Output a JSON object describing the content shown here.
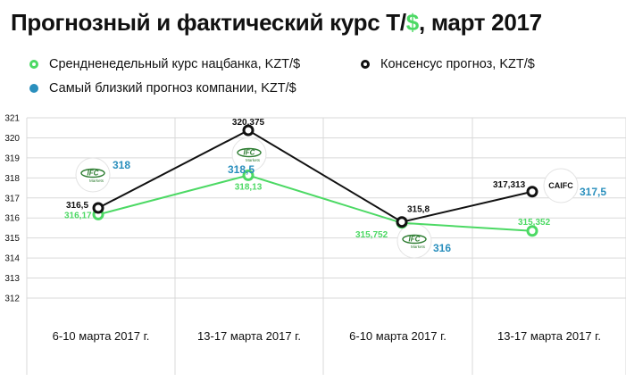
{
  "title": {
    "prefix": "Прогнозный и фактический курс Т/",
    "dollar": "$",
    "suffix": ", март 2017"
  },
  "legend": {
    "actual": "Срендненедельный курс нацбанка, KZT/$",
    "consensus": "Консенсус прогноз, KZT/$",
    "closest": "Самый близкий прогноз компании, KZT/$"
  },
  "colors": {
    "actual": "#4cd964",
    "consensus": "#111111",
    "closest": "#2a8fbd",
    "grid": "#d9d9d9"
  },
  "chart_data": {
    "type": "line",
    "categories": [
      "6-10 марта 2017 г.",
      "13-17 марта 2017 г.",
      "6-10 марта 2017 г.",
      "13-17 марта 2017 г."
    ],
    "ylim": [
      312,
      321
    ],
    "yticks": [
      "312",
      "313",
      "314",
      "315",
      "316",
      "317",
      "318",
      "319",
      "320",
      "321"
    ],
    "grid": true,
    "series": [
      {
        "key": "actual",
        "name": "Срендненедельный курс нацбанка, KZT/$",
        "values": [
          316.17,
          318.13,
          315.752,
          315.352
        ],
        "labels": [
          "316,17",
          "318,13",
          "315,752",
          "315,352"
        ]
      },
      {
        "key": "consensus",
        "name": "Консенсус прогноз, KZT/$",
        "values": [
          316.5,
          320.375,
          315.8,
          317.313
        ],
        "labels": [
          "316,5",
          "320,375",
          "315,8",
          "317,313"
        ]
      }
    ],
    "closest_forecasts": [
      {
        "company": "IFC Markets",
        "value": 318,
        "label": "318",
        "logo": "IFC"
      },
      {
        "company": "IFC Markets",
        "value": 318.5,
        "label": "318,5",
        "logo": "IFC"
      },
      {
        "company": "IFC Markets",
        "value": 316,
        "label": "316",
        "logo": "IFC"
      },
      {
        "company": "CAIFC",
        "value": 317.5,
        "label": "317,5",
        "logo": "CAIFC"
      }
    ]
  }
}
